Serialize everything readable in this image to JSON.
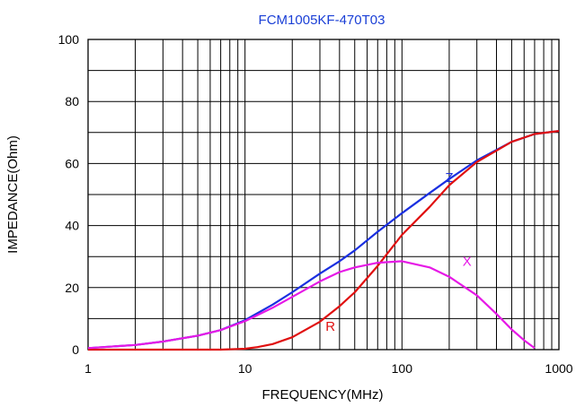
{
  "chart_data": {
    "type": "line",
    "title": "FCM1005KF-470T03",
    "xlabel": "FREQUENCY(MHz)",
    "ylabel": "IMPEDANCE(Ohm)",
    "x_scale": "log",
    "xlim": [
      1,
      1000
    ],
    "ylim": [
      0,
      100
    ],
    "grid": true,
    "x_ticks": [
      1,
      10,
      100,
      1000
    ],
    "x_tick_labels": [
      "1",
      "10",
      "100",
      "1000"
    ],
    "y_ticks": [
      0,
      20,
      40,
      60,
      80,
      100
    ],
    "y_tick_labels": [
      "0",
      "20",
      "40",
      "60",
      "80",
      "100"
    ],
    "series": [
      {
        "name": "Z",
        "color": "#1a2fe0",
        "label_at": [
          200,
          54
        ],
        "x": [
          1,
          2,
          3,
          5,
          7,
          10,
          15,
          20,
          30,
          40,
          50,
          70,
          100,
          150,
          200,
          300,
          500,
          700,
          1000
        ],
        "y": [
          0.5,
          1.5,
          2.6,
          4.5,
          6.3,
          9.5,
          14.5,
          18.5,
          24.5,
          28.5,
          32,
          38,
          44,
          50.5,
          55,
          61,
          67,
          69.5,
          70.5
        ]
      },
      {
        "name": "R",
        "color": "#e01010",
        "label_at": [
          35,
          6
        ],
        "x": [
          1,
          2,
          3,
          5,
          7,
          10,
          12,
          15,
          20,
          30,
          40,
          50,
          70,
          100,
          150,
          200,
          300,
          500,
          700,
          1000
        ],
        "y": [
          0,
          0,
          0,
          0,
          0,
          0.3,
          0.8,
          1.8,
          4,
          9,
          14,
          18.5,
          27,
          37,
          46,
          53,
          60.5,
          67,
          69.5,
          70.5
        ]
      },
      {
        "name": "X",
        "color": "#e619e6",
        "label_at": [
          260,
          27
        ],
        "x": [
          1,
          2,
          3,
          5,
          7,
          10,
          15,
          20,
          30,
          40,
          50,
          70,
          100,
          150,
          200,
          300,
          400,
          500,
          600,
          700
        ],
        "y": [
          0.5,
          1.5,
          2.6,
          4.5,
          6.3,
          9.2,
          13.5,
          17,
          22,
          25,
          26.5,
          28,
          28.5,
          26.5,
          23.5,
          17.5,
          11.5,
          6.5,
          3,
          0.5
        ]
      }
    ]
  }
}
